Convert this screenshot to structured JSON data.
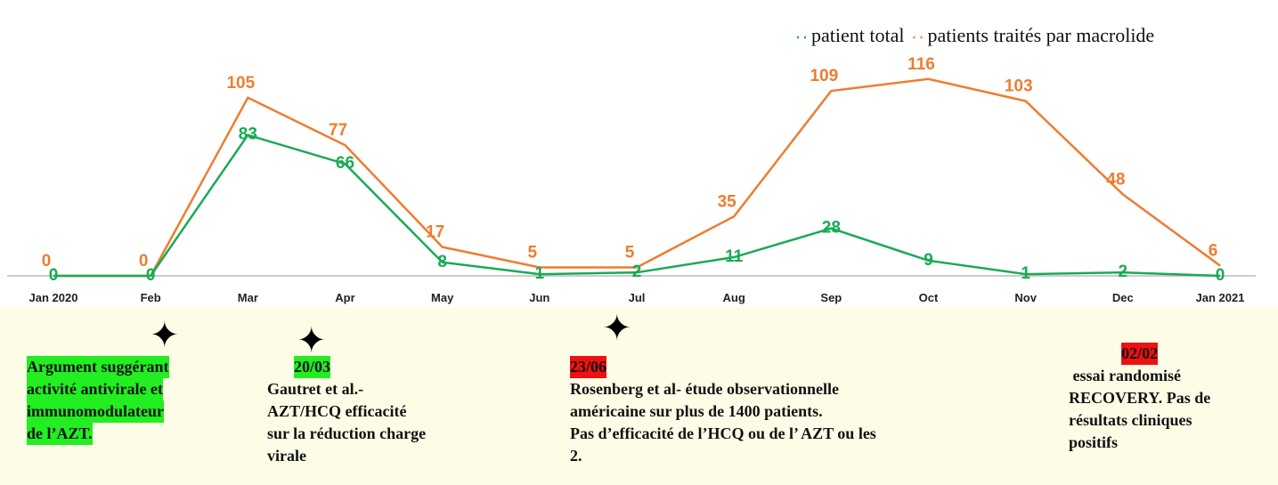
{
  "chart_data": {
    "type": "line",
    "categories": [
      "Jan 2020",
      "Feb",
      "Mar",
      "Apr",
      "May",
      "Jun",
      "Jul",
      "Aug",
      "Sep",
      "Oct",
      "Nov",
      "Dec",
      "Jan 2021"
    ],
    "series": [
      {
        "name": "patient total",
        "color": "#1aaa55",
        "values": [
          0,
          0,
          83,
          66,
          8,
          1,
          2,
          11,
          28,
          9,
          1,
          2,
          0
        ]
      },
      {
        "name": "patients traités par macrolide",
        "color": "#ed7d31",
        "values": [
          0,
          0,
          105,
          77,
          17,
          5,
          5,
          35,
          109,
          116,
          103,
          48,
          6
        ]
      }
    ],
    "ylim": [
      0,
      140
    ],
    "legend": "top-right",
    "annotations": [
      {
        "lines": [
          "Argument suggérant",
          "activité antivirale et",
          "immunomodulateur",
          "de l’AZT."
        ],
        "highlight": "#22ee22"
      },
      {
        "date": "20/03",
        "highlight": "#22ee22",
        "lines": [
          "Gautret et al.-",
          "AZT/HCQ efficacité",
          "sur la réduction charge",
          "virale"
        ]
      },
      {
        "date": "23/06",
        "highlight": "#ee1111",
        "lines": [
          "Rosenberg et al- étude observationnelle",
          "américaine sur plus de 1400 patients.",
          "Pas d’efficacité de l’HCQ ou de l’ AZT ou les",
          "2."
        ]
      },
      {
        "date": "02/02",
        "highlight": "#ee1111",
        "lines": [
          " essai randomisé",
          "RECOVERY. Pas de",
          "résultats cliniques",
          "positifs"
        ]
      }
    ]
  }
}
